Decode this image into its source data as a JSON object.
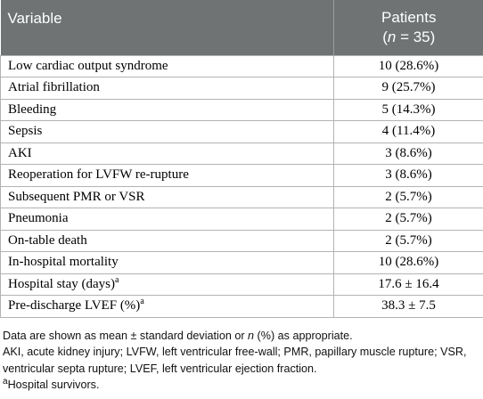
{
  "header": {
    "variable": "Variable",
    "patients_line1": "Patients",
    "patients_paren_open": "(",
    "patients_n": "n",
    "patients_eq": " = 35)"
  },
  "rows": [
    {
      "variable": "Low cardiac output syndrome",
      "value": "10 (28.6%)"
    },
    {
      "variable": "Atrial fibrillation",
      "value": "9 (25.7%)"
    },
    {
      "variable": "Bleeding",
      "value": "5 (14.3%)"
    },
    {
      "variable": "Sepsis",
      "value": "4 (11.4%)"
    },
    {
      "variable": "AKI",
      "value": "3 (8.6%)"
    },
    {
      "variable": "Reoperation for LVFW re-rupture",
      "value": "3 (8.6%)"
    },
    {
      "variable": "Subsequent PMR or VSR",
      "value": "2 (5.7%)"
    },
    {
      "variable": "Pneumonia",
      "value": "2 (5.7%)"
    },
    {
      "variable": "On-table death",
      "value": "2 (5.7%)"
    },
    {
      "variable": "In-hospital mortality",
      "value": "10 (28.6%)"
    },
    {
      "variable": "Hospital stay (days)",
      "sup": "a",
      "value": "17.6 ± 16.4"
    },
    {
      "variable": "Pre-discharge LVEF (%)",
      "sup": "a",
      "value": "38.3 ± 7.5"
    }
  ],
  "notes": {
    "line1_a": "Data are shown as mean ± standard deviation or ",
    "line1_n": "n",
    "line1_b": " (%) as appropriate.",
    "abbrev": "AKI, acute kidney injury; LVFW, left ventricular free-wall; PMR, papillary muscle rupture; VSR, ventricular septa rupture; LVEF, left ventricular ejection fraction.",
    "footnote_mark": "a",
    "footnote_text": "Hospital survivors."
  }
}
